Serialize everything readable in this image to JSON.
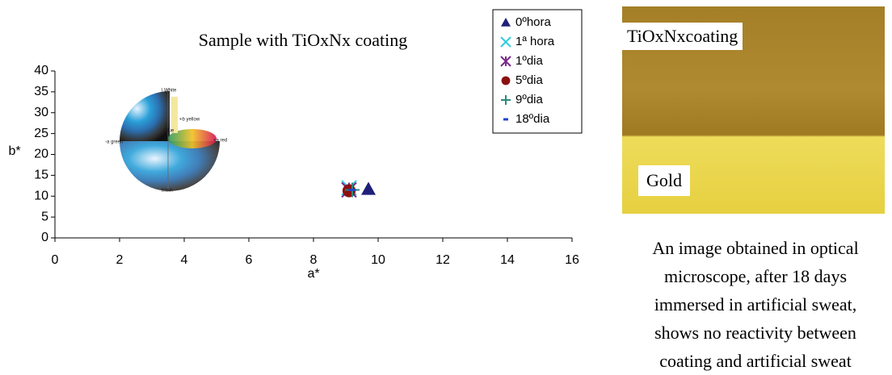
{
  "chart_data": {
    "type": "scatter",
    "title": "Sample with TiOxNx coating",
    "x_label": "a*",
    "y_label": "b*",
    "xlim": [
      0,
      16
    ],
    "xticks": [
      0,
      2,
      4,
      6,
      8,
      10,
      12,
      14,
      16
    ],
    "ylim": [
      0,
      40
    ],
    "yticks": [
      0,
      5,
      10,
      15,
      20,
      25,
      30,
      35,
      40
    ],
    "series": [
      {
        "name": "0ºhora",
        "color": "#1f1f7a",
        "marker": "triangle",
        "x": [
          9.7
        ],
        "values": [
          11.7
        ]
      },
      {
        "name": "1ª hora",
        "color": "#33ccdd",
        "marker": "x",
        "x": [
          9.1
        ],
        "values": [
          12.0
        ]
      },
      {
        "name": "1ºdia",
        "color": "#7a2a8a",
        "marker": "star",
        "x": [
          9.1
        ],
        "values": [
          11.5
        ]
      },
      {
        "name": "5ºdia",
        "color": "#8b1010",
        "marker": "circle",
        "x": [
          9.1
        ],
        "values": [
          11.3
        ]
      },
      {
        "name": "9ºdia",
        "color": "#2a8a7a",
        "marker": "plus",
        "x": [
          9.2
        ],
        "values": [
          11.5
        ]
      },
      {
        "name": "18ºdia",
        "color": "#2244cc",
        "marker": "dash",
        "x": [
          9.2
        ],
        "values": [
          11.5
        ]
      }
    ],
    "inset_labels": [
      "l White",
      "+b yellow",
      "-a green",
      "+a red",
      "blue",
      "black"
    ]
  },
  "micrograph": {
    "top_label": "TiOxNxcoating",
    "bottom_label": "Gold"
  },
  "caption": [
    "An image obtained in optical",
    "microscope, after 18 days",
    "immersed in artificial sweat,",
    "shows no reactivity between",
    "coating and artificial sweat"
  ]
}
